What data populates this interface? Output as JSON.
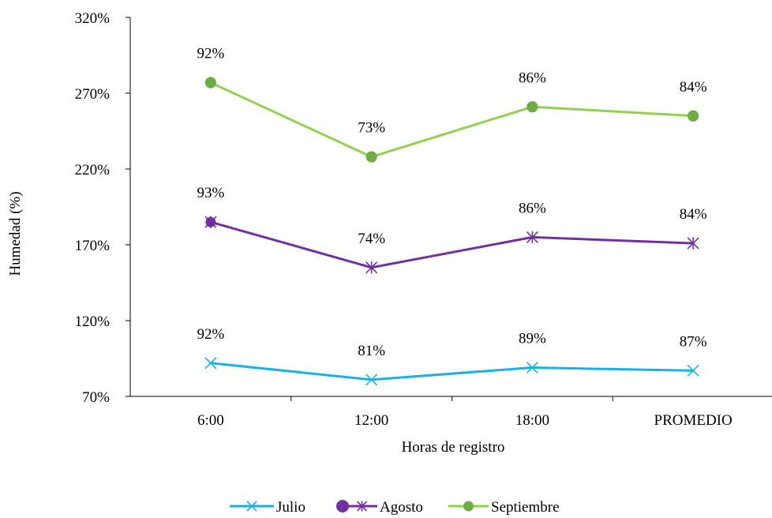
{
  "chart_data": {
    "type": "line",
    "xlabel": "Horas de registro",
    "ylabel": "Humedad (%)",
    "categories": [
      "6:00",
      "12:00",
      "18:00",
      "PROMEDIO"
    ],
    "ylim": [
      70,
      320
    ],
    "yticks": [
      70,
      120,
      170,
      220,
      270,
      320
    ],
    "ytick_labels": [
      "70%",
      "120%",
      "170%",
      "220%",
      "270%",
      "320%"
    ],
    "grid": false,
    "legend": "bottom",
    "series": [
      {
        "name": "Julio",
        "values": [
          92,
          81,
          89,
          87
        ],
        "labels": [
          "92%",
          "81%",
          "89%",
          "87%"
        ],
        "color": "#1AB0E8",
        "marker": "x",
        "line_marker": "x"
      },
      {
        "name": "Agosto",
        "values": [
          185,
          155,
          175,
          171
        ],
        "labels": [
          "93%",
          "74%",
          "86%",
          "84%"
        ],
        "color": "#7030A0",
        "marker": "star",
        "line_marker": "circle"
      },
      {
        "name": "Septiembre",
        "values": [
          277,
          228,
          261,
          255
        ],
        "labels": [
          "92%",
          "73%",
          "86%",
          "84%"
        ],
        "color": "#92D050",
        "marker_color": "#70AD47",
        "marker": "circle",
        "line_marker": "circle"
      }
    ]
  }
}
